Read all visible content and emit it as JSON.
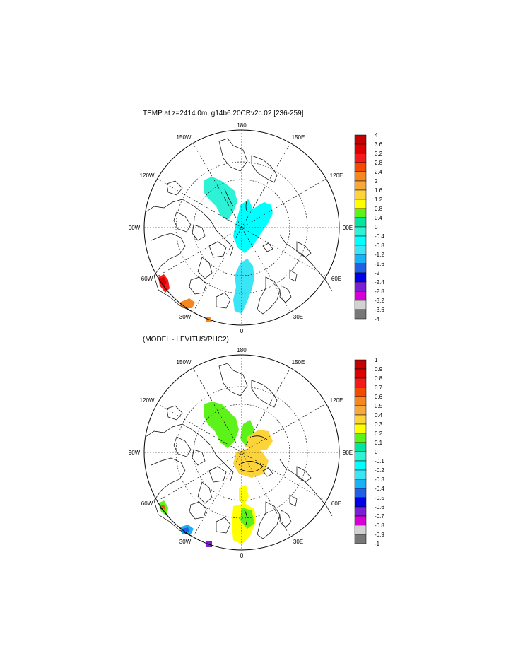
{
  "panels": [
    {
      "title": "TEMP at z=2414.0m, g14b6.20CRv2c.02 [236-259]",
      "longitude_labels": [
        "180",
        "150E",
        "120E",
        "90E",
        "60E",
        "30E",
        "0",
        "30W",
        "60W",
        "90W",
        "120W",
        "150W"
      ],
      "colorbar": {
        "labels": [
          "4",
          "3.6",
          "3.2",
          "2.8",
          "2.4",
          "2",
          "1.6",
          "1.2",
          "0.8",
          "0.4",
          "0",
          "-0.4",
          "-0.8",
          "-1.2",
          "-1.6",
          "-2",
          "-2.4",
          "-2.8",
          "-3.2",
          "-3.6",
          "-4"
        ],
        "colors": [
          "#c40000",
          "#dc0000",
          "#f21a1a",
          "#f24a00",
          "#f5871f",
          "#f7a83b",
          "#fcd43a",
          "#ffff00",
          "#5cf21a",
          "#00e6a0",
          "#2ef2d6",
          "#00ffff",
          "#3ae6f5",
          "#19b3f5",
          "#1f60e6",
          "#0000e6",
          "#7a1fd6",
          "#d600d6",
          "#d2d2d2",
          "#777777"
        ]
      }
    },
    {
      "title": "(MODEL - LEVITUS/PHC2)",
      "longitude_labels": [
        "180",
        "150E",
        "120E",
        "90E",
        "60E",
        "30E",
        "0",
        "30W",
        "60W",
        "90W",
        "120W",
        "150W"
      ],
      "colorbar": {
        "labels": [
          "1",
          "0.9",
          "0.8",
          "0.7",
          "0.6",
          "0.5",
          "0.4",
          "0.3",
          "0.2",
          "0.1",
          "0",
          "-0.1",
          "-0.2",
          "-0.3",
          "-0.4",
          "-0.5",
          "-0.6",
          "-0.7",
          "-0.8",
          "-0.9",
          "-1"
        ],
        "colors": [
          "#c40000",
          "#dc0000",
          "#f21a1a",
          "#f24a00",
          "#f5871f",
          "#f7a83b",
          "#fcd43a",
          "#ffff00",
          "#5cf21a",
          "#00e6a0",
          "#2ef2d6",
          "#00ffff",
          "#3ae6f5",
          "#19b3f5",
          "#1f60e6",
          "#0000e6",
          "#7a1fd6",
          "#d600d6",
          "#d2d2d2",
          "#777777"
        ]
      }
    }
  ]
}
